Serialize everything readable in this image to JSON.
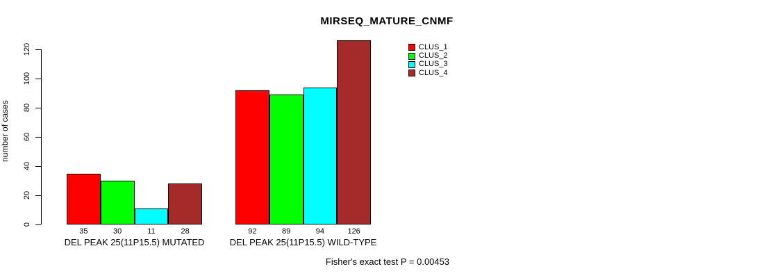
{
  "chart_data": {
    "type": "bar",
    "title": "MIRSEQ_MATURE_CNMF",
    "xlabel": "",
    "ylabel": "number of cases",
    "ylim": [
      0,
      130
    ],
    "yticks": [
      0,
      20,
      40,
      60,
      80,
      100,
      120
    ],
    "grid": false,
    "bar_borders": true,
    "legend_position": "upper-right-of-plot",
    "categories": [
      "DEL PEAK 25(11P15.5) MUTATED",
      "DEL PEAK 25(11P15.5) WILD-TYPE"
    ],
    "series": [
      {
        "name": "CLUS_1",
        "color": "#FF0000",
        "values": [
          35,
          92
        ]
      },
      {
        "name": "CLUS_2",
        "color": "#00FF00",
        "values": [
          30,
          89
        ]
      },
      {
        "name": "CLUS_3",
        "color": "#00FFFF",
        "values": [
          11,
          94
        ]
      },
      {
        "name": "CLUS_4",
        "color": "#A52A2A",
        "values": [
          28,
          126
        ]
      }
    ],
    "value_labels": [
      [
        35,
        30,
        11,
        28
      ],
      [
        92,
        89,
        94,
        126
      ]
    ],
    "footnote": "Fisher's exact test P = 0.00453",
    "background_color": "#FFFFFF",
    "text_color": "#000000"
  }
}
